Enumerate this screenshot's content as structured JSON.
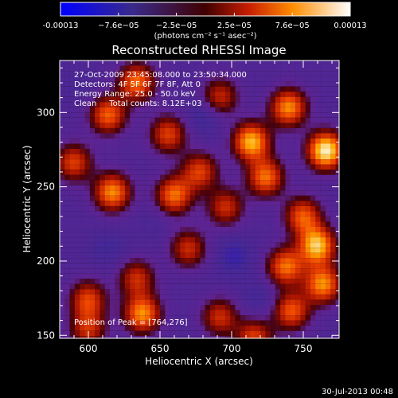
{
  "chart_data": {
    "type": "heatmap",
    "title": "Reconstructed RHESSI Image",
    "xlabel": "Heliocentric X (arcsec)",
    "ylabel": "Heliocentric Y (arcsec)",
    "xlim": [
      580,
      775
    ],
    "ylim": [
      148,
      335
    ],
    "x_ticks": [
      600,
      650,
      700,
      750
    ],
    "y_ticks": [
      150,
      200,
      250,
      300
    ],
    "colorbar": {
      "tick_labels": [
        "-0.00013",
        "−7.6e−05",
        "−2.5e−05",
        "2.5e−05",
        "7.6e−05",
        "0.00013"
      ],
      "unit_label": "(photons cm⁻² s⁻¹ asec⁻²)",
      "range": [
        -0.00013,
        0.00013
      ]
    },
    "info_lines": [
      "27-Oct-2009 23:45:08.000 to 23:50:34.000",
      "Detectors: 4F 5F 6F 7F 8F, Att 0",
      "Energy Range: 25.0 - 50.0 keV",
      "Clean     Total counts: 8.12E+03"
    ],
    "peak_text": "Position of Peak = [764,276]",
    "peak": [
      764,
      276
    ],
    "blobs": [
      {
        "x": 764,
        "y": 276,
        "v": 0.00013
      },
      {
        "x": 712,
        "y": 282,
        "v": 0.000105
      },
      {
        "x": 738,
        "y": 305,
        "v": 9e-05
      },
      {
        "x": 722,
        "y": 258,
        "v": 8e-05
      },
      {
        "x": 612,
        "y": 300,
        "v": 7.5e-05
      },
      {
        "x": 632,
        "y": 322,
        "v": 8e-05
      },
      {
        "x": 654,
        "y": 287,
        "v": 6e-05
      },
      {
        "x": 588,
        "y": 268,
        "v": 6e-05
      },
      {
        "x": 615,
        "y": 248,
        "v": 9e-05
      },
      {
        "x": 658,
        "y": 246,
        "v": 8e-05
      },
      {
        "x": 676,
        "y": 262,
        "v": 6e-05
      },
      {
        "x": 694,
        "y": 238,
        "v": 5e-05
      },
      {
        "x": 748,
        "y": 232,
        "v": 7e-05
      },
      {
        "x": 758,
        "y": 212,
        "v": 0.00011
      },
      {
        "x": 736,
        "y": 198,
        "v": 8e-05
      },
      {
        "x": 762,
        "y": 186,
        "v": 9e-05
      },
      {
        "x": 740,
        "y": 168,
        "v": 7e-05
      },
      {
        "x": 668,
        "y": 210,
        "v": 5e-05
      },
      {
        "x": 632,
        "y": 190,
        "v": 5e-05
      },
      {
        "x": 636,
        "y": 166,
        "v": 9e-05
      },
      {
        "x": 598,
        "y": 176,
        "v": 6e-05
      },
      {
        "x": 598,
        "y": 156,
        "v": 5e-05
      },
      {
        "x": 690,
        "y": 164,
        "v": 5e-05
      },
      {
        "x": 714,
        "y": 150,
        "v": 6e-05
      },
      {
        "x": 690,
        "y": 312,
        "v": 5e-05
      },
      {
        "x": 700,
        "y": 205,
        "v": -6e-05
      },
      {
        "x": 612,
        "y": 210,
        "v": -5e-05
      },
      {
        "x": 680,
        "y": 300,
        "v": -6e-05
      },
      {
        "x": 592,
        "y": 318,
        "v": -4e-05
      },
      {
        "x": 645,
        "y": 228,
        "v": -4e-05
      },
      {
        "x": 718,
        "y": 176,
        "v": -5e-05
      },
      {
        "x": 610,
        "y": 192,
        "v": -3e-05
      }
    ]
  },
  "timestamp": "30-Jul-2013 00:48"
}
